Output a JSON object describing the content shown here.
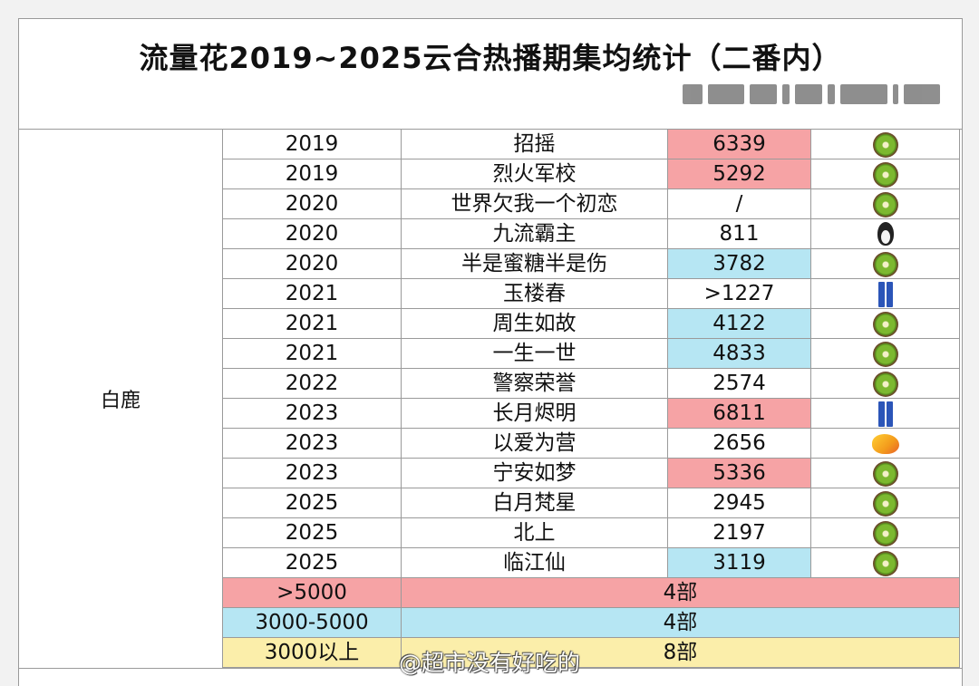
{
  "title": "流量花2019~2025云合热播期集均统计（二番内）",
  "actress": "白鹿",
  "rows": [
    {
      "year": "2019",
      "drama": "招摇",
      "value": "6339",
      "highlight": "red",
      "platform_icon": "kiwi-icon"
    },
    {
      "year": "2019",
      "drama": "烈火军校",
      "value": "5292",
      "highlight": "red",
      "platform_icon": "kiwi-icon"
    },
    {
      "year": "2020",
      "drama": "世界欠我一个初恋",
      "value": "/",
      "highlight": "",
      "platform_icon": "kiwi-icon"
    },
    {
      "year": "2020",
      "drama": "九流霸主",
      "value": "811",
      "highlight": "",
      "platform_icon": "penguin-icon"
    },
    {
      "year": "2020",
      "drama": "半是蜜糖半是伤",
      "value": "3782",
      "highlight": "blue",
      "platform_icon": "kiwi-icon"
    },
    {
      "year": "2021",
      "drama": "玉楼春",
      "value": ">1227",
      "highlight": "",
      "platform_icon": "jeans-icon"
    },
    {
      "year": "2021",
      "drama": "周生如故",
      "value": "4122",
      "highlight": "blue",
      "platform_icon": "kiwi-icon"
    },
    {
      "year": "2021",
      "drama": "一生一世",
      "value": "4833",
      "highlight": "blue",
      "platform_icon": "kiwi-icon"
    },
    {
      "year": "2022",
      "drama": "警察荣誉",
      "value": "2574",
      "highlight": "",
      "platform_icon": "kiwi-icon"
    },
    {
      "year": "2023",
      "drama": "长月烬明",
      "value": "6811",
      "highlight": "red",
      "platform_icon": "jeans-icon"
    },
    {
      "year": "2023",
      "drama": "以爱为营",
      "value": "2656",
      "highlight": "",
      "platform_icon": "mango-icon"
    },
    {
      "year": "2023",
      "drama": "宁安如梦",
      "value": "5336",
      "highlight": "red",
      "platform_icon": "kiwi-icon"
    },
    {
      "year": "2025",
      "drama": "白月梵星",
      "value": "2945",
      "highlight": "",
      "platform_icon": "kiwi-icon"
    },
    {
      "year": "2025",
      "drama": "北上",
      "value": "2197",
      "highlight": "",
      "platform_icon": "kiwi-icon"
    },
    {
      "year": "2025",
      "drama": "临江仙",
      "value": "3119",
      "highlight": "blue",
      "platform_icon": "kiwi-icon"
    }
  ],
  "summary": [
    {
      "range": ">5000",
      "count": "4部",
      "color": "red"
    },
    {
      "range": "3000-5000",
      "count": "4部",
      "color": "blue"
    },
    {
      "range": "3000以上",
      "count": "8部",
      "color": "yellow"
    }
  ],
  "colors": {
    "red": "#f6a3a5",
    "blue": "#b6e6f3",
    "yellow": "#fbeeaa"
  },
  "watermark": "@超市没有好吃的"
}
